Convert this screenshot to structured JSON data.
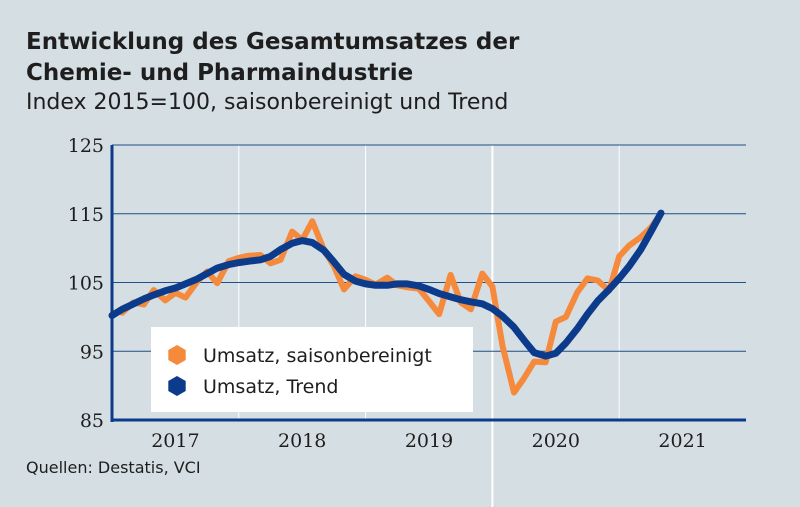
{
  "header": {
    "title_line1": "Entwicklung des Gesamtumsatzes der",
    "title_line2": "Chemie- und Pharmaindustrie",
    "subtitle": "Index 2015=100, saisonbereinigt und Trend"
  },
  "footer": {
    "source": "Quellen: Destatis, VCI"
  },
  "chart_data": {
    "type": "line",
    "title": "Entwicklung des Gesamtumsatzes der Chemie- und Pharmaindustrie",
    "subtitle": "Index 2015=100, saisonbereinigt und Trend",
    "xlabel": "",
    "ylabel": "",
    "x_ticks": [
      "2017",
      "2018",
      "2019",
      "2020",
      "2021"
    ],
    "y_ticks": [
      125,
      115,
      105,
      95,
      85
    ],
    "ylim": [
      85,
      125
    ],
    "xlim": [
      2016.5,
      2021.5
    ],
    "grid": "horizontal lines at y ticks; vertical lines between years",
    "legend_placement": "bottom-left",
    "series": [
      {
        "name": "Umsatz, saisonbereinigt",
        "color": "#f58a3c",
        "x": [
          2016.58,
          2016.67,
          2016.75,
          2016.83,
          2016.92,
          2017.0,
          2017.08,
          2017.17,
          2017.25,
          2017.33,
          2017.42,
          2017.5,
          2017.58,
          2017.67,
          2017.75,
          2017.83,
          2017.92,
          2018.0,
          2018.08,
          2018.17,
          2018.25,
          2018.33,
          2018.42,
          2018.5,
          2018.58,
          2018.67,
          2018.75,
          2018.83,
          2018.92,
          2019.0,
          2019.08,
          2019.17,
          2019.25,
          2019.33,
          2019.42,
          2019.5,
          2019.58,
          2019.67,
          2019.75,
          2019.83,
          2019.92,
          2020.0,
          2020.08,
          2020.17,
          2020.25,
          2020.33,
          2020.42,
          2020.5,
          2020.58,
          2020.67,
          2020.75,
          2020.83
        ],
        "values": [
          100.6,
          102.1,
          101.8,
          103.9,
          102.4,
          103.5,
          102.8,
          105.1,
          106.6,
          104.9,
          108.1,
          108.6,
          108.9,
          109.0,
          107.8,
          108.3,
          112.4,
          111.2,
          113.9,
          109.8,
          107.4,
          104.0,
          105.9,
          105.4,
          104.7,
          105.7,
          104.6,
          104.3,
          104.1,
          102.3,
          100.4,
          106.1,
          102.1,
          101.1,
          106.3,
          104.4,
          95.8,
          89.0,
          91.1,
          93.5,
          93.4,
          99.3,
          100.0,
          103.6,
          105.6,
          105.3,
          103.8,
          108.8,
          110.4,
          111.6,
          113.0,
          115.0
        ]
      },
      {
        "name": "Umsatz, Trend",
        "color": "#0d3b8c",
        "x": [
          2016.5,
          2016.58,
          2016.67,
          2016.75,
          2016.83,
          2016.92,
          2017.0,
          2017.08,
          2017.17,
          2017.25,
          2017.33,
          2017.42,
          2017.5,
          2017.58,
          2017.67,
          2017.75,
          2017.83,
          2017.92,
          2018.0,
          2018.08,
          2018.17,
          2018.25,
          2018.33,
          2018.42,
          2018.5,
          2018.58,
          2018.67,
          2018.75,
          2018.83,
          2018.92,
          2019.0,
          2019.08,
          2019.17,
          2019.25,
          2019.33,
          2019.42,
          2019.5,
          2019.58,
          2019.67,
          2019.75,
          2019.83,
          2019.92,
          2020.0,
          2020.08,
          2020.17,
          2020.25,
          2020.33,
          2020.42,
          2020.5,
          2020.58,
          2020.67,
          2020.75,
          2020.83
        ],
        "values": [
          100.2,
          101.1,
          101.9,
          102.6,
          103.2,
          103.8,
          104.2,
          104.8,
          105.5,
          106.3,
          107.1,
          107.6,
          107.9,
          108.1,
          108.3,
          108.8,
          109.8,
          110.7,
          111.1,
          110.8,
          109.7,
          108.0,
          106.2,
          105.2,
          104.8,
          104.6,
          104.6,
          104.8,
          104.8,
          104.5,
          104.0,
          103.4,
          102.9,
          102.5,
          102.2,
          101.9,
          101.2,
          100.1,
          98.5,
          96.6,
          94.8,
          94.3,
          94.7,
          96.2,
          98.3,
          100.4,
          102.3,
          104.0,
          105.6,
          107.4,
          109.8,
          112.4,
          115.1
        ]
      }
    ]
  }
}
